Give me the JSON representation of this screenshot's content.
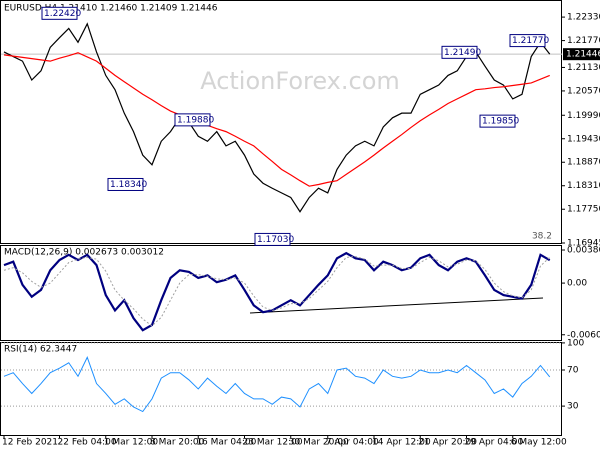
{
  "chart_data": [
    {
      "type": "line",
      "title": "EURUSD,H4 1.21410 1.21460 1.21409 1.21446",
      "watermark": "ActionForex.com",
      "series": [
        {
          "color": "#000000",
          "values": [
            1.215,
            1.2139,
            1.2128,
            1.2083,
            1.2105,
            1.2161,
            1.2184,
            1.2206,
            1.2173,
            1.2217,
            1.215,
            1.2094,
            1.206,
            1.2004,
            1.196,
            1.1904,
            1.1881,
            1.1937,
            1.196,
            1.1993,
            1.1982,
            1.1949,
            1.1937,
            1.196,
            1.1926,
            1.1937,
            1.1904,
            1.1859,
            1.1837,
            1.1825,
            1.1814,
            1.1803,
            1.1769,
            1.1803,
            1.1825,
            1.1814,
            1.187,
            1.1904,
            1.1926,
            1.1937,
            1.1926,
            1.1971,
            1.1993,
            1.2004,
            1.2004,
            1.2049,
            1.206,
            1.2071,
            1.2094,
            1.2105,
            1.2139,
            1.215,
            1.2116,
            1.2083,
            1.2071,
            1.2038,
            1.2049,
            1.2139,
            1.2173,
            1.21446
          ]
        },
        {
          "color": "#ff0000",
          "values": [
            1.2143,
            1.214,
            1.2137,
            1.2134,
            1.2131,
            1.2128,
            1.2135,
            1.2141,
            1.2148,
            1.2138,
            1.2128,
            1.2111,
            1.2094,
            1.2079,
            1.2064,
            1.2049,
            1.2036,
            1.2022,
            1.2009,
            1.2,
            1.1991,
            1.1982,
            1.1975,
            1.1967,
            1.196,
            1.1949,
            1.1937,
            1.1926,
            1.1907,
            1.1889,
            1.187,
            1.1857,
            1.1843,
            1.183,
            1.1834,
            1.1839,
            1.1843,
            1.1858,
            1.1873,
            1.1888,
            1.1904,
            1.1921,
            1.1937,
            1.1953,
            1.197,
            1.1986,
            1.2,
            1.2013,
            1.2027,
            1.2038,
            1.2049,
            1.206,
            1.2062,
            1.2065,
            1.2067,
            1.207,
            1.2073,
            1.2076,
            1.2085,
            1.2094
          ]
        }
      ],
      "ylim": [
        1.16945,
        1.22666
      ],
      "yticks": [
        {
          "value": 1.2233,
          "label": "1.22330"
        },
        {
          "value": 1.2177,
          "label": "1.21770"
        },
        {
          "value": 1.2113,
          "label": "1.21130"
        },
        {
          "value": 1.2057,
          "label": "1.20570"
        },
        {
          "value": 1.1999,
          "label": "1.19990"
        },
        {
          "value": 1.1943,
          "label": "1.19430"
        },
        {
          "value": 1.1887,
          "label": "1.18870"
        },
        {
          "value": 1.1831,
          "label": "1.18310"
        },
        {
          "value": 1.1775,
          "label": "1.17750"
        },
        1.16945
      ],
      "current_price": 1.21446,
      "annotations": [
        {
          "value": 1.2242,
          "label": "1.22420"
        },
        {
          "value": 1.2149,
          "label": "1.21490"
        },
        {
          "value": 1.2177,
          "label": "1.21770"
        },
        {
          "value": 1.1988,
          "label": "1.19880"
        },
        {
          "value": 1.1834,
          "label": "1.18340"
        },
        {
          "value": 1.1985,
          "label": "1.19850"
        },
        {
          "value": 1.1703,
          "label": "1.17030"
        }
      ],
      "fib_label": "38.2",
      "grid": false
    },
    {
      "type": "line",
      "title": "MACD(12,26,9) 0.002673 0.003012",
      "series": [
        {
          "color": "#000080",
          "values": [
            0.0021,
            0.0025,
            -0.0002,
            -0.0016,
            -0.0008,
            0.0015,
            0.0027,
            0.0033,
            0.0027,
            0.0033,
            0.0021,
            -0.0014,
            -0.0032,
            -0.002,
            -0.0041,
            -0.0055,
            -0.0049,
            -0.002,
            0.0006,
            0.0015,
            0.0013,
            0.0006,
            0.0009,
            0.0001,
            0.0004,
            0.0009,
            -0.0008,
            -0.0026,
            -0.0034,
            -0.0032,
            -0.0026,
            -0.002,
            -0.0026,
            -0.0014,
            -0.0002,
            0.0009,
            0.0029,
            0.0035,
            0.0029,
            0.0027,
            0.0015,
            0.0025,
            0.0021,
            0.0015,
            0.0018,
            0.0029,
            0.0033,
            0.0021,
            0.0015,
            0.0025,
            0.0029,
            0.0025,
            0.0009,
            -0.0008,
            -0.0014,
            -0.0016,
            -0.0018,
            -0.0002,
            0.0033,
            0.002673
          ]
        },
        {
          "color": "#a0a0a0",
          "values": [
            0.0015,
            0.0018,
            0.0012,
            0.0002,
            -0.0005,
            0.0,
            0.0012,
            0.0024,
            0.0028,
            0.003,
            0.0028,
            0.0014,
            -0.0008,
            -0.002,
            -0.003,
            -0.0042,
            -0.005,
            -0.004,
            -0.002,
            0.0,
            0.001,
            0.001,
            0.0008,
            0.0005,
            0.0004,
            0.0006,
            0.0,
            -0.0015,
            -0.0028,
            -0.0032,
            -0.0029,
            -0.0024,
            -0.0024,
            -0.0018,
            -0.0008,
            0.0002,
            0.0018,
            0.003,
            0.0031,
            0.0028,
            0.002,
            0.0021,
            0.0021,
            0.0017,
            0.0017,
            0.0024,
            0.003,
            0.0026,
            0.0019,
            0.0022,
            0.0027,
            0.0026,
            0.0016,
            0.0,
            -0.001,
            -0.0015,
            -0.0017,
            -0.0008,
            0.002,
            0.003012
          ]
        }
      ],
      "ylim": [
        -0.00665,
        0.00445
      ],
      "yticks": [
        0.003864,
        {
          "value": 0,
          "label": "0.00"
        },
        -0.006038
      ],
      "grid": false
    },
    {
      "type": "line",
      "title": "RSI(14) 62.3447",
      "categories": [
        "12 Feb 2021",
        null,
        null,
        null,
        null,
        null,
        "22 Feb 04:00",
        null,
        null,
        null,
        null,
        "1 Mar 12:00",
        null,
        null,
        null,
        null,
        "8 Mar 20:00",
        null,
        null,
        null,
        null,
        "16 Mar 04:00",
        null,
        null,
        null,
        null,
        "23 Mar 12:00",
        null,
        null,
        null,
        null,
        "30 Mar 20:00",
        null,
        null,
        null,
        "7 Apr 04:00",
        null,
        null,
        null,
        null,
        "14 Apr 12:00",
        null,
        null,
        null,
        null,
        "21 Apr 20:00",
        null,
        null,
        null,
        null,
        "29 Apr 04:00",
        null,
        null,
        null,
        null,
        "6 May 12:00",
        null,
        null,
        null,
        null
      ],
      "series": [
        {
          "color": "#1e90ff",
          "values": [
            63,
            67,
            55,
            44,
            55,
            67,
            72,
            78,
            63,
            84,
            55,
            44,
            32,
            38,
            29,
            24,
            38,
            61,
            67,
            67,
            59,
            49,
            61,
            52,
            44,
            55,
            44,
            38,
            38,
            32,
            40,
            38,
            29,
            49,
            55,
            44,
            70,
            72,
            63,
            61,
            55,
            70,
            63,
            61,
            63,
            70,
            67,
            67,
            70,
            67,
            75,
            67,
            59,
            44,
            49,
            40,
            55,
            63,
            75,
            62.3447
          ]
        }
      ],
      "ylim": [
        -2,
        101
      ],
      "yticks": [
        30,
        70,
        100
      ],
      "grid": true
    }
  ]
}
